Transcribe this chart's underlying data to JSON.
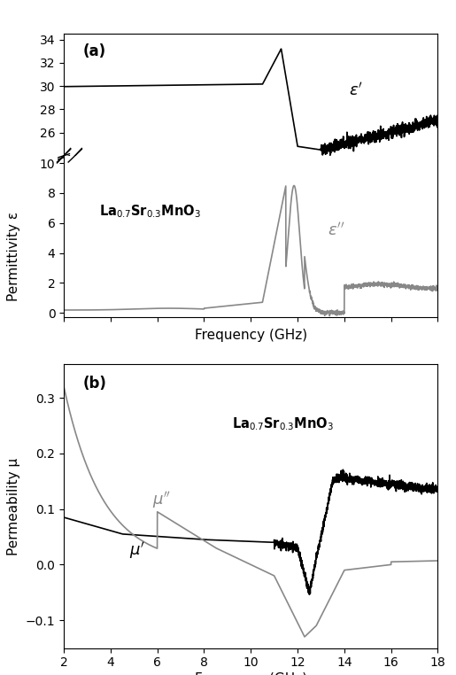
{
  "fig_width": 5.15,
  "fig_height": 7.62,
  "dpi": 100,
  "background_color": "#ffffff",
  "panel_a_top": {
    "ylim": [
      24.0,
      34.5
    ],
    "yticks": [
      26,
      28,
      30,
      32,
      34
    ],
    "color_prime": "#000000",
    "line_width": 1.2
  },
  "panel_a_bot": {
    "ylim": [
      -0.3,
      10.5
    ],
    "yticks": [
      0,
      2,
      4,
      6,
      8,
      10
    ],
    "color_dprime": "#888888",
    "line_width": 1.2
  },
  "panel_a_shared": {
    "xlabel": "Frequency (GHz)",
    "ylabel": "Permittivity ε",
    "xlim": [
      2,
      18
    ],
    "xticks": [
      2,
      4,
      6,
      8,
      10,
      12,
      14,
      16,
      18
    ]
  },
  "panel_b": {
    "label": "(b)",
    "xlabel": "Frequency (GHz)",
    "ylabel": "Permeability μ",
    "xlim": [
      2,
      18
    ],
    "ylim": [
      -0.15,
      0.36
    ],
    "yticks": [
      -0.1,
      0.0,
      0.1,
      0.2,
      0.3
    ],
    "xticks": [
      2,
      4,
      6,
      8,
      10,
      12,
      14,
      16,
      18
    ],
    "color_prime": "#000000",
    "color_dprime": "#888888",
    "line_width": 1.2
  }
}
